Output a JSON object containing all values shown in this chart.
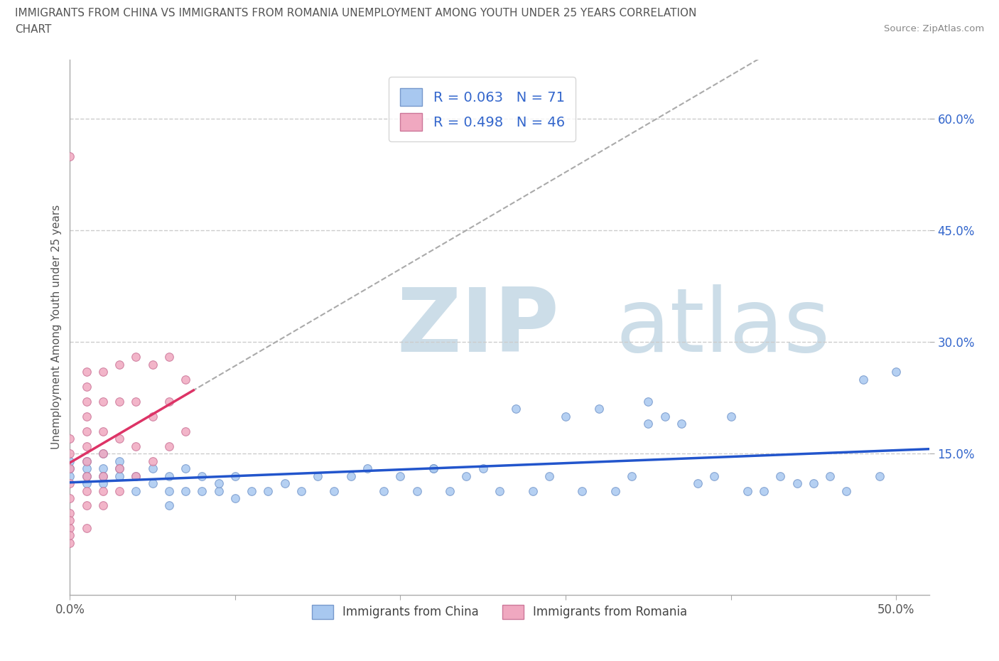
{
  "title_line1": "IMMIGRANTS FROM CHINA VS IMMIGRANTS FROM ROMANIA UNEMPLOYMENT AMONG YOUTH UNDER 25 YEARS CORRELATION",
  "title_line2": "CHART",
  "source": "Source: ZipAtlas.com",
  "ylabel": "Unemployment Among Youth under 25 years",
  "xlim": [
    0.0,
    0.52
  ],
  "ylim": [
    -0.04,
    0.68
  ],
  "xticks": [
    0.0,
    0.1,
    0.2,
    0.3,
    0.4,
    0.5
  ],
  "xticklabels": [
    "0.0%",
    "",
    "",
    "",
    "",
    "50.0%"
  ],
  "yticks": [
    0.15,
    0.3,
    0.45,
    0.6
  ],
  "yticklabels": [
    "15.0%",
    "30.0%",
    "45.0%",
    "60.0%"
  ],
  "china_color": "#a8c8f0",
  "china_edge": "#7799cc",
  "romania_color": "#f0a8c0",
  "romania_edge": "#cc7799",
  "china_line_color": "#2255cc",
  "romania_line_color": "#dd3366",
  "china_R": 0.063,
  "china_N": 71,
  "romania_R": 0.498,
  "romania_N": 46,
  "watermark_zip": "ZIP",
  "watermark_atlas": "atlas",
  "watermark_color": "#ccdde8"
}
